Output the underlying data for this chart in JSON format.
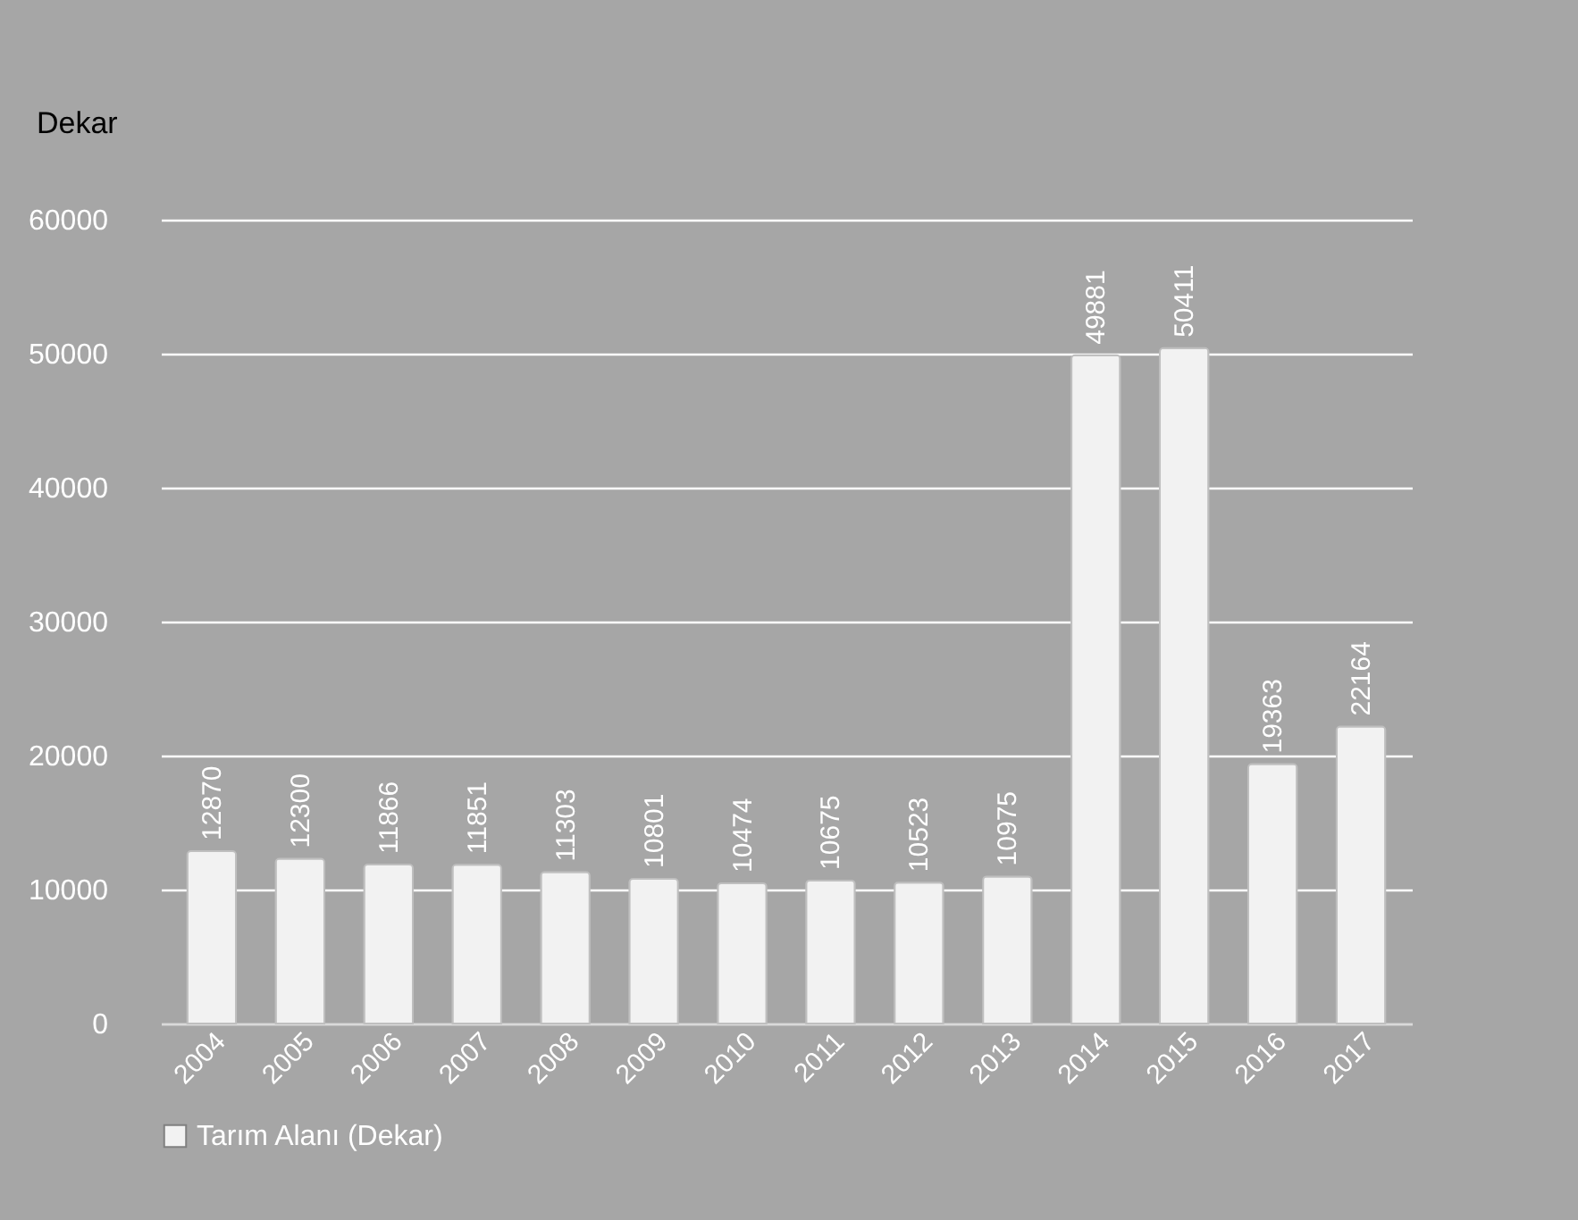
{
  "chart_data": {
    "type": "bar",
    "ylabel": "Dekar",
    "categories": [
      "2004",
      "2005",
      "2006",
      "2007",
      "2008",
      "2009",
      "2010",
      "2011",
      "2012",
      "2013",
      "2014",
      "2015",
      "2016",
      "2017"
    ],
    "series": [
      {
        "name": "Tarım Alanı (Dekar)",
        "color": "#f2f2f2",
        "values": [
          12870,
          12300,
          11866,
          11851,
          11303,
          10801,
          10474,
          10675,
          10523,
          10975,
          49881,
          50411,
          19363,
          22164
        ]
      }
    ],
    "ylim": [
      0,
      60000
    ],
    "yticks": [
      0,
      10000,
      20000,
      30000,
      40000,
      50000,
      60000
    ],
    "grid": "y",
    "legend": "bottom",
    "data_labels": true
  }
}
